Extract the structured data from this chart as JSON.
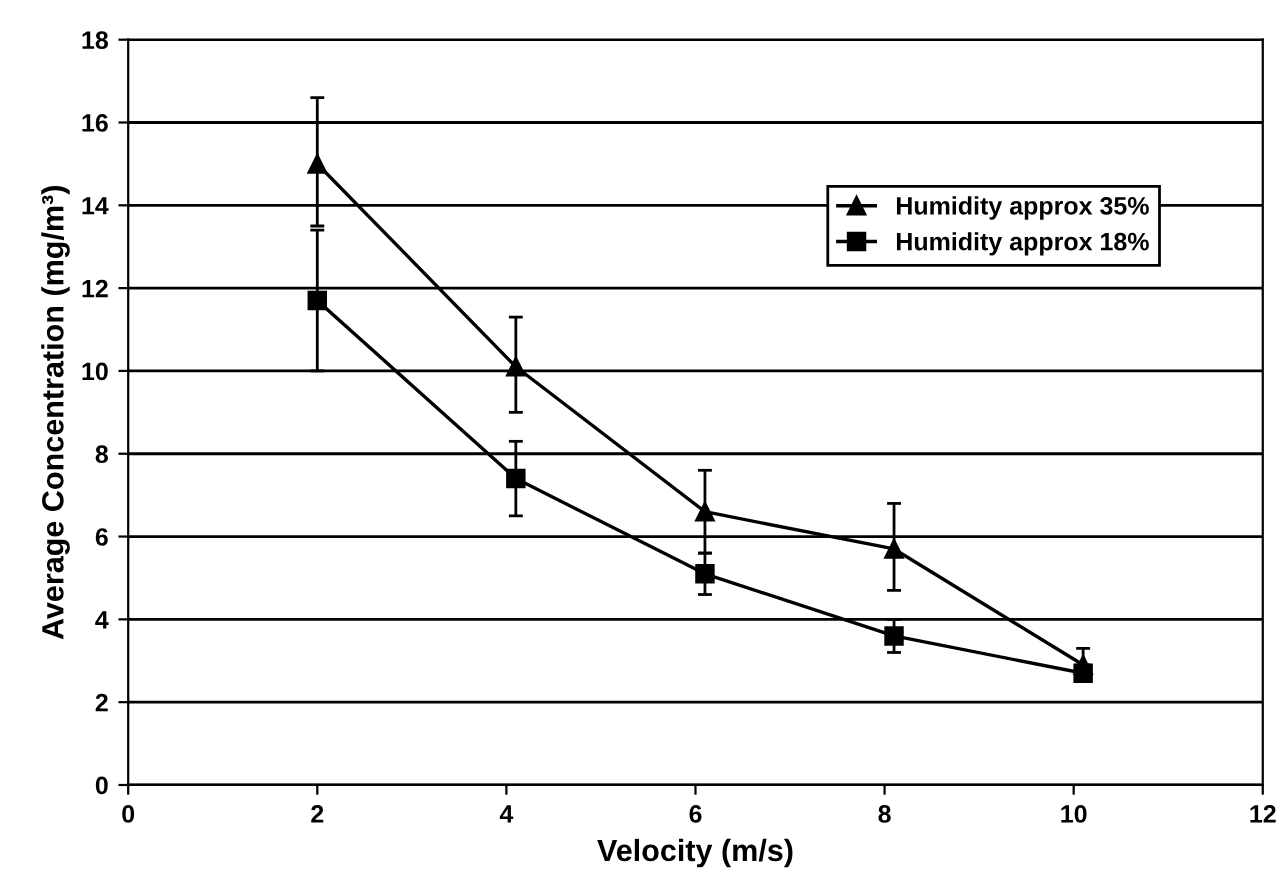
{
  "chart_data": {
    "type": "line",
    "xlabel": "Velocity (m/s)",
    "ylabel": "Average Concentration (mg/m³)",
    "x": [
      2,
      4.1,
      6.1,
      8.1,
      10.1
    ],
    "series": [
      {
        "name": "Humidity approx 35%",
        "color": "#000000",
        "marker": "triangle",
        "values": [
          15.0,
          10.1,
          6.6,
          5.7,
          2.9
        ],
        "errors": [
          [
            13.5,
            16.6
          ],
          [
            9.0,
            11.3
          ],
          [
            5.6,
            7.6
          ],
          [
            4.7,
            6.8
          ],
          [
            2.6,
            3.3
          ]
        ]
      },
      {
        "name": "Humidity approx 18%",
        "color": "#000000",
        "marker": "square",
        "values": [
          11.7,
          7.4,
          5.1,
          3.6,
          2.7
        ],
        "errors": [
          [
            10.0,
            13.4
          ],
          [
            6.5,
            8.3
          ],
          [
            4.6,
            5.6
          ],
          [
            3.2,
            4.0
          ],
          [
            2.5,
            2.9
          ]
        ]
      }
    ],
    "xlim": [
      0,
      12
    ],
    "xticks": [
      0,
      2,
      4,
      6,
      8,
      10,
      12
    ],
    "ylim": [
      0,
      18
    ],
    "yticks": [
      0,
      2,
      4,
      6,
      8,
      10,
      12,
      14,
      16,
      18
    ],
    "grid": "y",
    "legend": "top right",
    "line_style": "solid"
  }
}
